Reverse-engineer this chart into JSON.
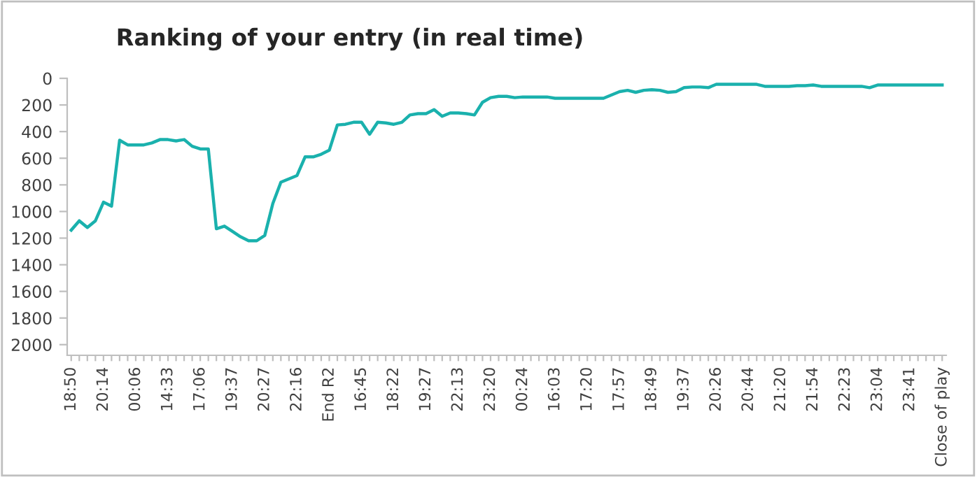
{
  "chart_data": {
    "type": "line",
    "title": "Ranking of your entry (in real time)",
    "categories": [
      "18:50",
      null,
      null,
      null,
      "20:14",
      null,
      null,
      null,
      "00:06",
      null,
      null,
      null,
      "14:33",
      null,
      null,
      null,
      "17:06",
      null,
      null,
      null,
      "19:37",
      null,
      null,
      null,
      "20:27",
      null,
      null,
      null,
      "22:16",
      null,
      null,
      null,
      "End R2",
      null,
      null,
      null,
      "16:45",
      null,
      null,
      null,
      "18:22",
      null,
      null,
      null,
      "19:27",
      null,
      null,
      null,
      "22:13",
      null,
      null,
      null,
      "23:20",
      null,
      null,
      null,
      "00:24",
      null,
      null,
      null,
      "16:03",
      null,
      null,
      null,
      "17:20",
      null,
      null,
      null,
      "17:57",
      null,
      null,
      null,
      "18:49",
      null,
      null,
      null,
      "19:37",
      null,
      null,
      null,
      "20:26",
      null,
      null,
      null,
      "20:44",
      null,
      null,
      null,
      "21:20",
      null,
      null,
      null,
      "21:54",
      null,
      null,
      null,
      "22:23",
      null,
      null,
      null,
      "23:04",
      null,
      null,
      null,
      "23:41",
      null,
      null,
      null,
      "Close of play"
    ],
    "series": [
      {
        "color": "#1ab1ad",
        "values": [
          1140,
          1070,
          1120,
          1070,
          930,
          960,
          465,
          500,
          500,
          500,
          485,
          460,
          460,
          470,
          460,
          510,
          530,
          530,
          1130,
          1110,
          1150,
          1190,
          1220,
          1220,
          1180,
          940,
          780,
          755,
          730,
          590,
          590,
          570,
          540,
          350,
          345,
          330,
          330,
          420,
          330,
          335,
          345,
          330,
          275,
          265,
          265,
          235,
          285,
          260,
          260,
          265,
          275,
          180,
          145,
          135,
          135,
          145,
          140,
          140,
          140,
          140,
          150,
          150,
          150,
          150,
          150,
          150,
          150,
          125,
          100,
          90,
          105,
          90,
          85,
          90,
          105,
          100,
          70,
          65,
          65,
          70,
          45,
          45,
          45,
          45,
          45,
          45,
          60,
          60,
          60,
          60,
          55,
          55,
          50,
          60,
          60,
          60,
          60,
          60,
          60,
          70,
          50,
          50,
          50,
          50,
          50,
          50,
          50,
          50,
          50
        ]
      }
    ],
    "ylim": [
      2080,
      0
    ],
    "yticks": [
      0,
      200,
      400,
      600,
      800,
      1000,
      1200,
      1400,
      1600,
      1800,
      2000
    ],
    "grid": false,
    "marker": "none",
    "line_style": "solid"
  }
}
